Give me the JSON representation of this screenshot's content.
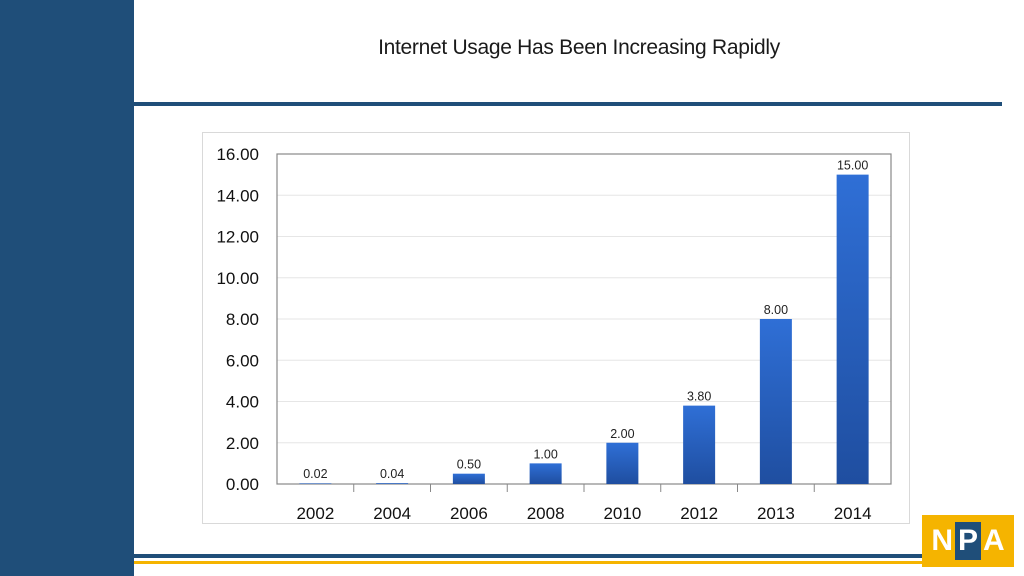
{
  "slide": {
    "title": "Internet Usage Has Been Increasing Rapidly"
  },
  "colors": {
    "sidebar": "#1f4e79",
    "bar": "#2f6fd6",
    "bar_dark": "#1f4ea0",
    "accent_gold": "#f5b400"
  },
  "logo": {
    "letters": [
      "N",
      "P",
      "A"
    ]
  },
  "chart_data": {
    "type": "bar",
    "categories": [
      "2002",
      "2004",
      "2006",
      "2008",
      "2010",
      "2012",
      "2013",
      "2014"
    ],
    "values": [
      0.02,
      0.04,
      0.5,
      1.0,
      2.0,
      3.8,
      8.0,
      15.0
    ],
    "data_labels": [
      "0.02",
      "0.04",
      "0.50",
      "1.00",
      "2.00",
      "3.80",
      "8.00",
      "15.00"
    ],
    "y_ticks": [
      "0.00",
      "2.00",
      "4.00",
      "6.00",
      "8.00",
      "10.00",
      "12.00",
      "14.00",
      "16.00"
    ],
    "ylim": [
      0,
      16
    ],
    "title": "",
    "xlabel": "",
    "ylabel": "",
    "grid": true,
    "legend": "none"
  }
}
